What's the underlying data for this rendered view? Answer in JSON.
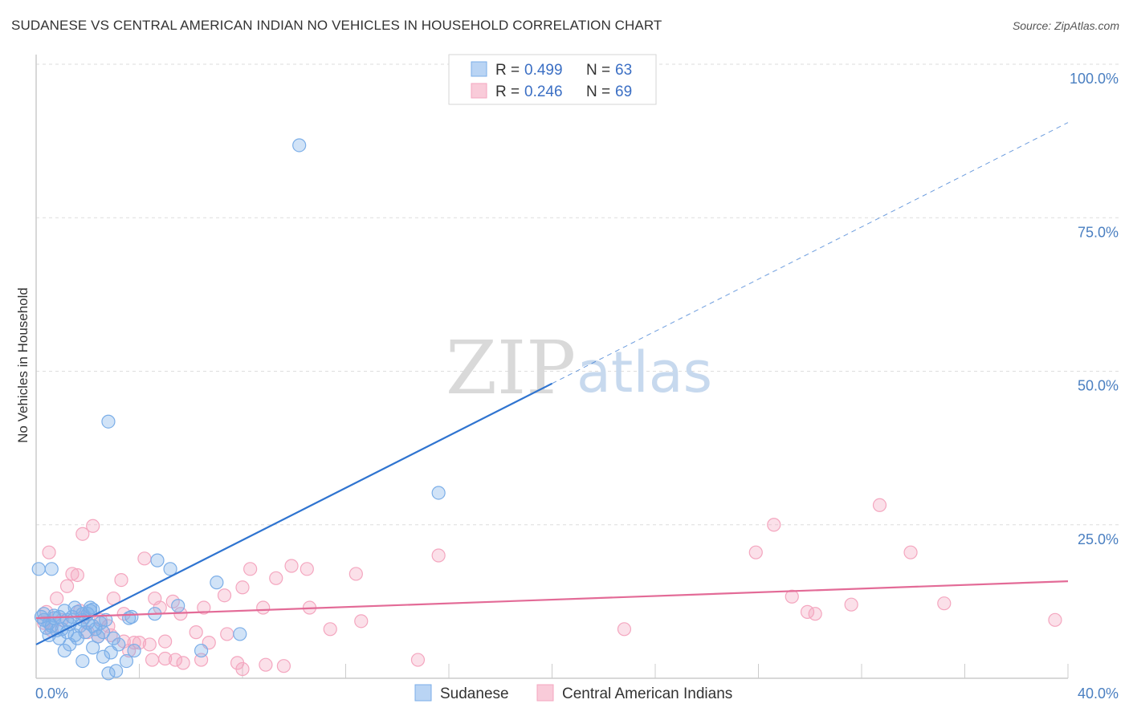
{
  "title": "SUDANESE VS CENTRAL AMERICAN INDIAN NO VEHICLES IN HOUSEHOLD CORRELATION CHART",
  "source": "Source: ZipAtlas.com",
  "watermark": {
    "zip": "ZIP",
    "atlas": "atlas"
  },
  "chart_data": {
    "type": "scatter",
    "ylabel": "No Vehicles in Household",
    "xlim": [
      0,
      40
    ],
    "ylim": [
      0,
      100
    ],
    "x_ticks": [
      "0.0%",
      "40.0%"
    ],
    "y_ticks": [
      {
        "value": 100,
        "label": "100.0%"
      },
      {
        "value": 75,
        "label": "75.0%"
      },
      {
        "value": 50,
        "label": "50.0%"
      },
      {
        "value": 25,
        "label": "25.0%"
      }
    ],
    "grid": true,
    "legend_position": "top-center",
    "colors": {
      "sudanese": "#7baee8",
      "central": "#f4a6bf",
      "sudanese_line": "#2f74d0",
      "central_line": "#e36b97"
    },
    "series": [
      {
        "name": "Sudanese",
        "R": "0.499",
        "N": "63",
        "trend": {
          "x0": 0,
          "y0": 5.5,
          "x1": 20,
          "y1": 48,
          "x_end": 40,
          "y_end": 90.5
        },
        "points": [
          [
            0.1,
            17.8
          ],
          [
            0.6,
            17.8
          ],
          [
            10.2,
            86.8
          ],
          [
            2.8,
            41.8
          ],
          [
            15.6,
            30.2
          ],
          [
            4.7,
            19.2
          ],
          [
            5.2,
            17.8
          ],
          [
            7.0,
            15.6
          ],
          [
            7.9,
            7.2
          ],
          [
            5.5,
            11.8
          ],
          [
            4.6,
            10.5
          ],
          [
            3.6,
            9.8
          ],
          [
            1.1,
            11.0
          ],
          [
            1.8,
            10.5
          ],
          [
            1.8,
            9.5
          ],
          [
            2.0,
            9.0
          ],
          [
            2.1,
            11.5
          ],
          [
            2.2,
            11.2
          ],
          [
            0.9,
            10.0
          ],
          [
            0.7,
            9.8
          ],
          [
            0.5,
            9.0
          ],
          [
            0.3,
            9.5
          ],
          [
            0.2,
            10.0
          ],
          [
            0.4,
            8.2
          ],
          [
            0.6,
            8.5
          ],
          [
            0.8,
            7.8
          ],
          [
            1.0,
            8.0
          ],
          [
            1.2,
            7.5
          ],
          [
            1.3,
            8.8
          ],
          [
            1.5,
            7.0
          ],
          [
            1.6,
            6.5
          ],
          [
            1.4,
            10.0
          ],
          [
            1.7,
            8.5
          ],
          [
            1.9,
            7.5
          ],
          [
            2.0,
            10.5
          ],
          [
            2.3,
            8.0
          ],
          [
            2.4,
            6.8
          ],
          [
            2.5,
            9.0
          ],
          [
            2.6,
            7.5
          ],
          [
            2.7,
            9.5
          ],
          [
            3.0,
            6.5
          ],
          [
            3.2,
            5.5
          ],
          [
            3.5,
            2.8
          ],
          [
            3.8,
            4.5
          ],
          [
            2.9,
            4.2
          ],
          [
            2.6,
            3.5
          ],
          [
            1.1,
            4.5
          ],
          [
            1.3,
            5.5
          ],
          [
            1.8,
            2.8
          ],
          [
            2.8,
            0.8
          ],
          [
            3.1,
            1.2
          ],
          [
            6.4,
            4.5
          ],
          [
            2.2,
            5.0
          ],
          [
            0.5,
            7.0
          ],
          [
            0.9,
            6.5
          ],
          [
            1.2,
            9.5
          ],
          [
            2.2,
            8.5
          ],
          [
            1.6,
            10.8
          ],
          [
            3.7,
            10.0
          ],
          [
            0.3,
            10.5
          ],
          [
            2.1,
            11.0
          ],
          [
            1.5,
            11.5
          ],
          [
            0.7,
            10.2
          ]
        ]
      },
      {
        "name": "Central American Indians",
        "R": "0.246",
        "N": "69",
        "trend": {
          "x0": 0,
          "y0": 9.8,
          "x1": 40,
          "y1": 15.8
        },
        "points": [
          [
            0.5,
            20.5
          ],
          [
            1.8,
            23.5
          ],
          [
            2.2,
            24.8
          ],
          [
            0.8,
            13.0
          ],
          [
            1.2,
            15.0
          ],
          [
            1.6,
            16.8
          ],
          [
            3.3,
            16.0
          ],
          [
            4.2,
            19.5
          ],
          [
            1.4,
            17.0
          ],
          [
            1.7,
            11.0
          ],
          [
            2.5,
            9.5
          ],
          [
            3.0,
            13.0
          ],
          [
            3.4,
            10.5
          ],
          [
            2.8,
            8.5
          ],
          [
            0.4,
            10.8
          ],
          [
            0.3,
            9.0
          ],
          [
            4.6,
            13.0
          ],
          [
            5.3,
            12.5
          ],
          [
            5.6,
            10.5
          ],
          [
            6.5,
            11.5
          ],
          [
            7.3,
            13.5
          ],
          [
            8.0,
            14.8
          ],
          [
            8.3,
            17.8
          ],
          [
            9.3,
            16.3
          ],
          [
            9.9,
            18.3
          ],
          [
            10.5,
            17.8
          ],
          [
            12.4,
            17.0
          ],
          [
            15.6,
            20.0
          ],
          [
            8.8,
            11.5
          ],
          [
            10.6,
            11.5
          ],
          [
            11.4,
            8.0
          ],
          [
            12.6,
            9.3
          ],
          [
            14.8,
            3.0
          ],
          [
            4.0,
            5.8
          ],
          [
            4.4,
            5.5
          ],
          [
            5.0,
            6.0
          ],
          [
            5.4,
            3.0
          ],
          [
            5.7,
            2.5
          ],
          [
            6.2,
            7.5
          ],
          [
            6.4,
            3.0
          ],
          [
            6.7,
            5.8
          ],
          [
            7.4,
            7.2
          ],
          [
            7.8,
            2.5
          ],
          [
            8.0,
            1.5
          ],
          [
            8.9,
            2.2
          ],
          [
            9.6,
            2.0
          ],
          [
            3.8,
            5.8
          ],
          [
            3.6,
            4.5
          ],
          [
            2.9,
            7.0
          ],
          [
            2.4,
            6.8
          ],
          [
            1.9,
            10.0
          ],
          [
            1.0,
            9.5
          ],
          [
            0.6,
            7.8
          ],
          [
            4.5,
            3.0
          ],
          [
            5.0,
            3.2
          ],
          [
            22.8,
            8.0
          ],
          [
            27.9,
            20.5
          ],
          [
            28.6,
            25.0
          ],
          [
            32.7,
            28.2
          ],
          [
            33.9,
            20.5
          ],
          [
            29.3,
            13.3
          ],
          [
            29.9,
            10.8
          ],
          [
            30.2,
            10.5
          ],
          [
            31.6,
            12.0
          ],
          [
            35.2,
            12.2
          ],
          [
            39.5,
            9.5
          ],
          [
            4.8,
            11.5
          ],
          [
            3.4,
            6.0
          ],
          [
            2.0,
            7.5
          ]
        ]
      }
    ]
  }
}
